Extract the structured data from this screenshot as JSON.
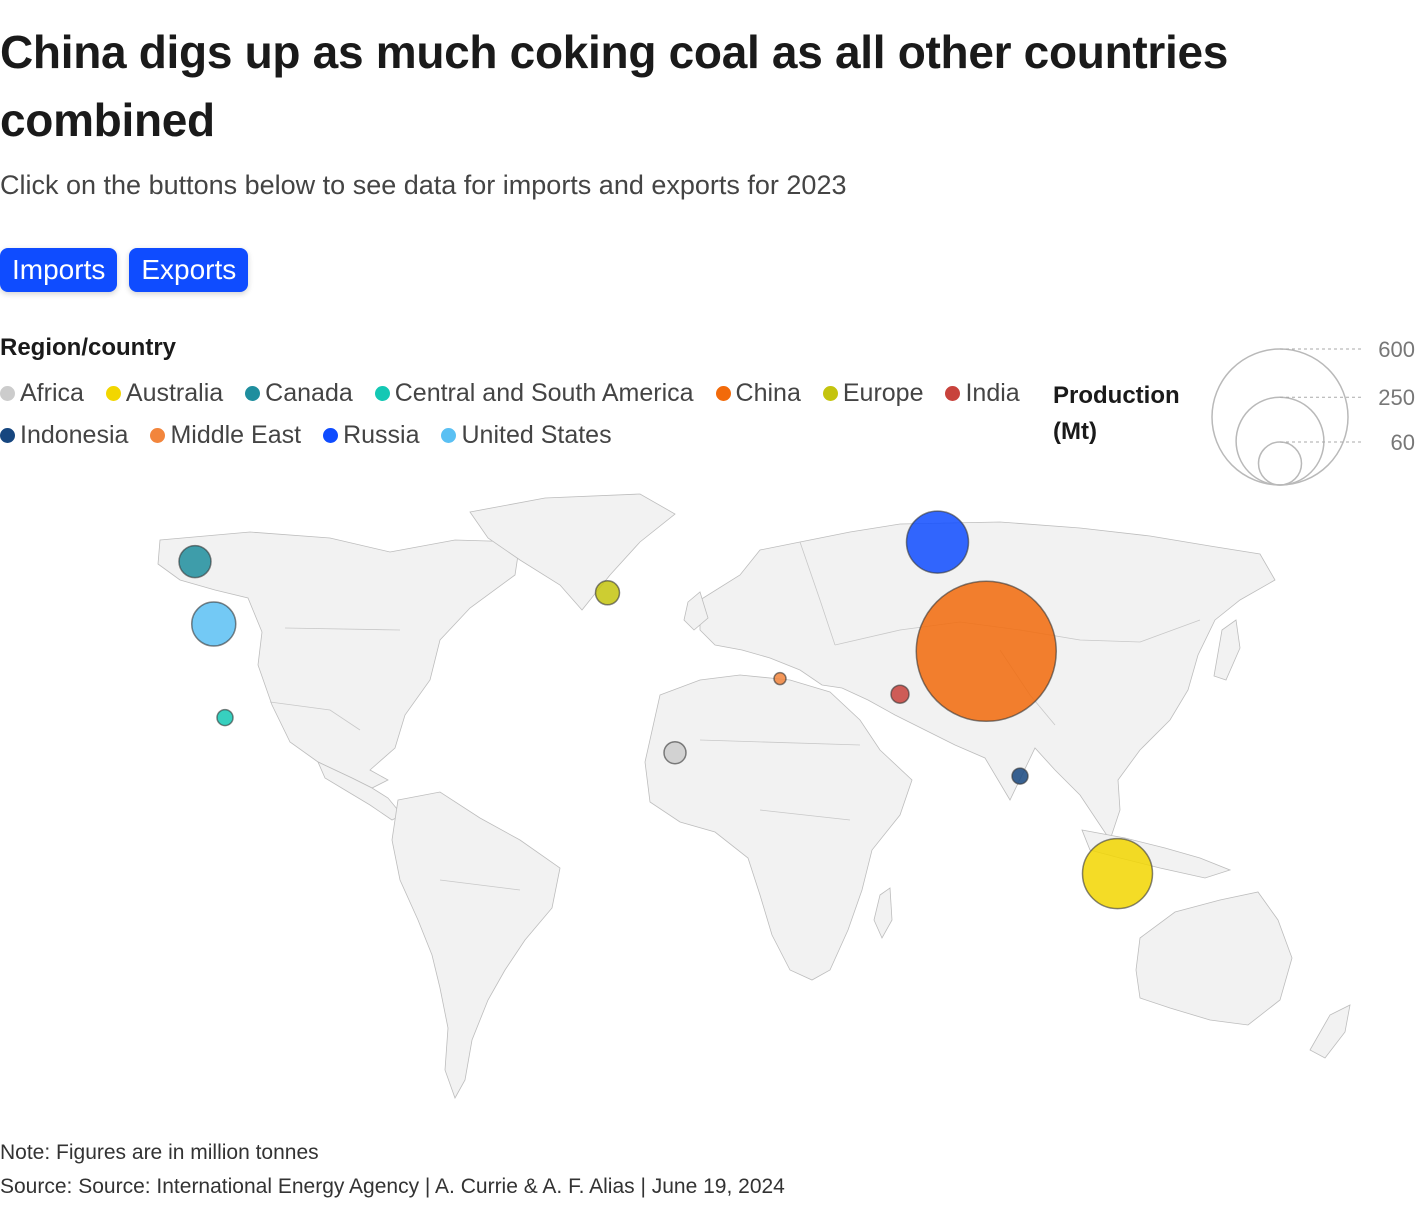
{
  "title": "China digs up as much coking coal as all other countries combined",
  "subtitle": "Click on the buttons below to see data for imports and exports for 2023",
  "buttons": {
    "imports": "Imports",
    "exports": "Exports"
  },
  "legend": {
    "title": "Region/country",
    "items": [
      {
        "label": "Africa",
        "color": "#cccccc"
      },
      {
        "label": "Australia",
        "color": "#f2d600"
      },
      {
        "label": "Canada",
        "color": "#1f8e9e"
      },
      {
        "label": "Central and South America",
        "color": "#14c8b4"
      },
      {
        "label": "China",
        "color": "#f26a0a"
      },
      {
        "label": "Europe",
        "color": "#c4c40e"
      },
      {
        "label": "India",
        "color": "#c8423c"
      },
      {
        "label": "Indonesia",
        "color": "#16467f"
      },
      {
        "label": "Middle East",
        "color": "#f2853c"
      },
      {
        "label": "Russia",
        "color": "#0f4cff"
      },
      {
        "label": "United States",
        "color": "#5ac0f3"
      }
    ]
  },
  "size_legend": {
    "title": "Production (Mt)",
    "values": [
      600,
      250,
      60
    ],
    "labels": [
      "600",
      "250",
      "60"
    ]
  },
  "map_data": {
    "type": "bubble-map",
    "unit": "Mt",
    "bubbles": [
      {
        "region": "Africa",
        "lon": 20,
        "lat": 7,
        "color": "#cccccc"
      },
      {
        "region": "Australia",
        "lon": 138,
        "lat": -24,
        "color": "#f2d600"
      },
      {
        "region": "Canada",
        "lon": -108,
        "lat": 56,
        "color": "#1f8e9e"
      },
      {
        "region": "Central and South America",
        "lon": -100,
        "lat": 16,
        "color": "#14c8b4"
      },
      {
        "region": "China",
        "lon": 103,
        "lat": 33,
        "color": "#f26a0a"
      },
      {
        "region": "Europe",
        "lon": 2,
        "lat": 48,
        "color": "#c4c40e"
      },
      {
        "region": "India",
        "lon": 80,
        "lat": 22,
        "color": "#c8423c"
      },
      {
        "region": "Indonesia",
        "lon": 112,
        "lat": 1,
        "color": "#16467f"
      },
      {
        "region": "Middle East",
        "lon": 48,
        "lat": 26,
        "color": "#f2853c"
      },
      {
        "region": "Russia",
        "lon": 90,
        "lat": 61,
        "color": "#0f4cff"
      },
      {
        "region": "United States",
        "lon": -103,
        "lat": 40,
        "color": "#5ac0f3"
      }
    ]
  },
  "note": "Note: Figures are in million tonnes",
  "source": "Source: Source: International Energy Agency | A. Currie & A. F. Alias | June 19, 2024"
}
